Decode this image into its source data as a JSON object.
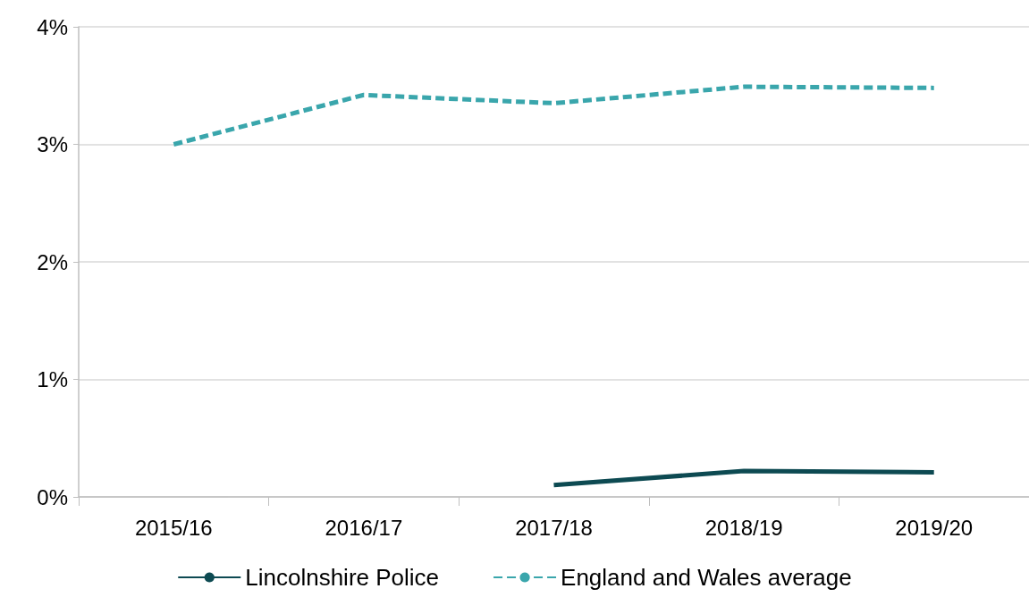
{
  "chart_data": {
    "type": "line",
    "categories": [
      "2015/16",
      "2016/17",
      "2017/18",
      "2018/19",
      "2019/20"
    ],
    "series": [
      {
        "name": "Lincolnshire Police",
        "color": "#0d4a52",
        "line_style": "solid",
        "values": [
          null,
          null,
          0.1,
          0.22,
          0.21
        ]
      },
      {
        "name": "England and Wales average",
        "color": "#3aa6ac",
        "line_style": "dashed",
        "values": [
          3.0,
          3.42,
          3.35,
          3.49,
          3.48
        ]
      }
    ],
    "ylim": [
      0,
      4
    ],
    "yticks": [
      {
        "value": 0,
        "label": "0%"
      },
      {
        "value": 1,
        "label": "1%"
      },
      {
        "value": 2,
        "label": "2%"
      },
      {
        "value": 3,
        "label": "3%"
      },
      {
        "value": 4,
        "label": "4%"
      }
    ],
    "grid": "y",
    "legend": "bottom",
    "marker": "none"
  }
}
